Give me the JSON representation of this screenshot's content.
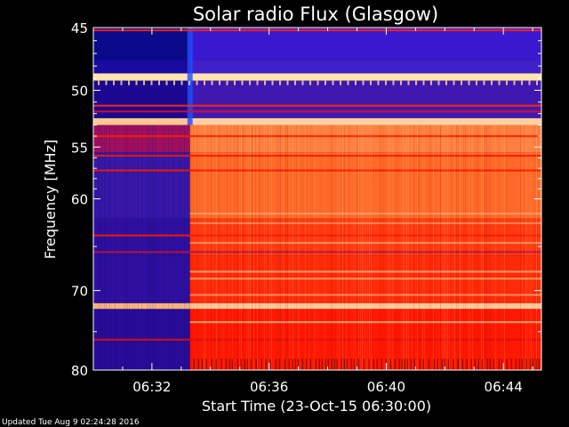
{
  "chart_data": {
    "type": "heatmap",
    "title": "Solar radio Flux (Glasgow)",
    "xlabel": "Start Time (23-Oct-15 06:30:00)",
    "ylabel": "Frequency [MHz]",
    "x_range_minutes": [
      0,
      15.3
    ],
    "y_range_mhz": [
      45,
      80
    ],
    "y_scale": "log",
    "x_ticks": [
      {
        "minute": 2,
        "label": "06:32"
      },
      {
        "minute": 6,
        "label": "06:36"
      },
      {
        "minute": 10,
        "label": "06:40"
      },
      {
        "minute": 14,
        "label": "06:44"
      }
    ],
    "y_ticks": [
      {
        "mhz": 45,
        "label": "45"
      },
      {
        "mhz": 50,
        "label": "50"
      },
      {
        "mhz": 55,
        "label": "55"
      },
      {
        "mhz": 60,
        "label": "60"
      },
      {
        "mhz": 70,
        "label": "70"
      },
      {
        "mhz": 80,
        "label": "80"
      }
    ],
    "onset_minute": 3.3,
    "colormap": [
      "#1a00a0",
      "#5a00c8",
      "#ff1200",
      "#ff8a40",
      "#ffd8a8"
    ],
    "bands_mhz": [
      {
        "low": 45,
        "high": 47.5,
        "before": "#0a0a8a",
        "after": "#3a18d0"
      },
      {
        "low": 47.5,
        "high": 48.6,
        "before": "#1a0aa0",
        "after": "#4020c8"
      },
      {
        "low": 48.6,
        "high": 49.2,
        "before": "#ffe4b0",
        "after": "#ffe4b0"
      },
      {
        "low": 49.2,
        "high": 52.4,
        "before": "#1a0890",
        "after": "#4018b0"
      },
      {
        "low": 52.4,
        "high": 53.0,
        "before": "#ffc890",
        "after": "#ffd0a0"
      },
      {
        "low": 53.0,
        "high": 55.5,
        "before": "#a01060",
        "after": "#ff8040"
      },
      {
        "low": 55.5,
        "high": 62.0,
        "before": "#3818a8",
        "after": "#ff6a28"
      },
      {
        "low": 62.0,
        "high": 66.0,
        "before": "#3010a0",
        "after": "#ff3a10"
      },
      {
        "low": 66.0,
        "high": 71.5,
        "before": "#3010a0",
        "after": "#ff2a08"
      },
      {
        "low": 71.5,
        "high": 72.2,
        "before": "#ffb880",
        "after": "#ffc898"
      },
      {
        "low": 72.2,
        "high": 80.0,
        "before": "#2a0c98",
        "after": "#ff1800"
      }
    ],
    "lines_mhz": [
      {
        "mhz": 45.2,
        "color": "#ff2000",
        "start": 0
      },
      {
        "mhz": 51.3,
        "color": "#ff2800",
        "start": 0
      },
      {
        "mhz": 51.8,
        "color": "#d01030",
        "start": 0
      },
      {
        "mhz": 54.0,
        "color": "#ff2000",
        "start": 0
      },
      {
        "mhz": 55.8,
        "color": "#ff1800",
        "start": 0
      },
      {
        "mhz": 57.2,
        "color": "#ff1800",
        "start": 0
      },
      {
        "mhz": 61.5,
        "color": "#ff9a60",
        "start": 3.3
      },
      {
        "mhz": 62.5,
        "color": "#ff8850",
        "start": 3.3
      },
      {
        "mhz": 63.8,
        "color": "#ff1a00",
        "start": 0
      },
      {
        "mhz": 64.6,
        "color": "#ff9060",
        "start": 3.3
      },
      {
        "mhz": 65.6,
        "color": "#c01040",
        "start": 0
      },
      {
        "mhz": 67.8,
        "color": "#ffa070",
        "start": 3.3
      },
      {
        "mhz": 68.6,
        "color": "#ff9a60",
        "start": 3.3
      },
      {
        "mhz": 70.5,
        "color": "#ff9060",
        "start": 3.3
      },
      {
        "mhz": 73.8,
        "color": "#ffa070",
        "start": 3.3
      },
      {
        "mhz": 76.0,
        "color": "#e01010",
        "start": 0
      }
    ]
  },
  "footer": {
    "updated": "Updated Tue Aug  9 02:24:28 2016"
  }
}
